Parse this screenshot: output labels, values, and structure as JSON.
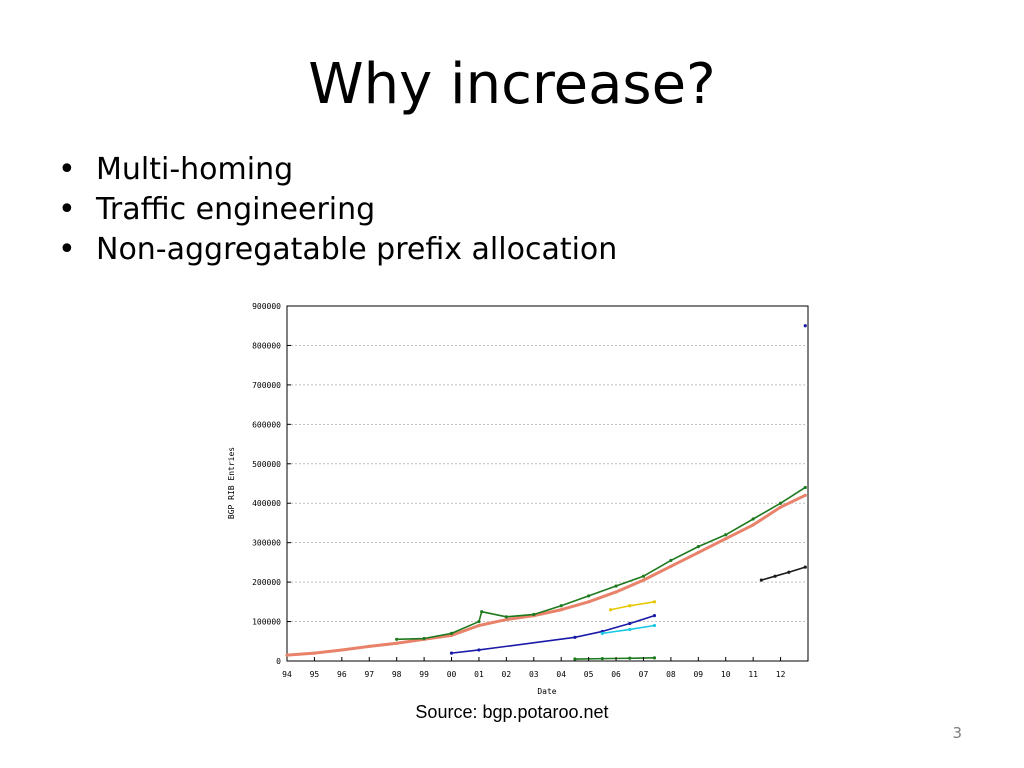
{
  "slide": {
    "title": "Why increase?",
    "bullets": [
      "Multi-homing",
      "Traffic engineering",
      "Non-aggregatable prefix allocation"
    ],
    "bullet_char": "•",
    "source": "Source: bgp.potaroo.net",
    "page_number": "3"
  },
  "chart_data": {
    "type": "scatter",
    "title": "",
    "xlabel": "Date",
    "ylabel": "BGP RIB Entries",
    "xlim": [
      1994,
      2013
    ],
    "ylim": [
      0,
      900000
    ],
    "x_ticks": [
      "94",
      "95",
      "96",
      "97",
      "98",
      "99",
      "00",
      "01",
      "02",
      "03",
      "04",
      "05",
      "06",
      "07",
      "08",
      "09",
      "10",
      "11",
      "12"
    ],
    "y_ticks": [
      "900000",
      "800000",
      "700000",
      "600000",
      "500000",
      "400000",
      "300000",
      "200000",
      "100000",
      "0"
    ],
    "grid": true,
    "series": [
      {
        "color": "#e8826a",
        "x": [
          1994.0,
          1995.0,
          1996.0,
          1997.0,
          1998.0,
          1999.0,
          2000.0,
          2001.0,
          2002.0,
          2003.0,
          2004.0,
          2005.0,
          2006.0,
          2007.0,
          2008.0,
          2009.0,
          2010.0,
          2011.0,
          2012.0,
          2012.9
        ],
        "y": [
          15000,
          20000,
          28000,
          37000,
          45000,
          55000,
          65000,
          90000,
          105000,
          115000,
          130000,
          150000,
          175000,
          205000,
          240000,
          275000,
          310000,
          345000,
          390000,
          420000
        ]
      },
      {
        "color": "#1e7a1e",
        "x": [
          1998.0,
          1999.0,
          2000.0,
          2001.0,
          2001.1,
          2002.0,
          2003.0,
          2004.0,
          2005.0,
          2006.0,
          2007.0,
          2008.0,
          2009.0,
          2010.0,
          2011.0,
          2012.0,
          2012.9
        ],
        "y": [
          55000,
          57000,
          70000,
          100000,
          125000,
          112000,
          118000,
          140000,
          165000,
          190000,
          215000,
          255000,
          290000,
          320000,
          360000,
          400000,
          440000
        ]
      },
      {
        "color": "#1a1aa8",
        "x": [
          2000.0,
          2001.0,
          2004.5,
          2005.5,
          2006.5,
          2007.4
        ],
        "y": [
          20000,
          28000,
          60000,
          75000,
          95000,
          115000
        ]
      },
      {
        "color": "#e6c800",
        "x": [
          2005.8,
          2006.5,
          2007.4
        ],
        "y": [
          130000,
          140000,
          150000
        ]
      },
      {
        "color": "#1ac8e6",
        "x": [
          2005.5,
          2006.5,
          2007.4
        ],
        "y": [
          70000,
          80000,
          90000
        ]
      },
      {
        "color": "#1e7a1e",
        "x": [
          2004.5,
          2005.5,
          2006.5,
          2007.4
        ],
        "y": [
          5000,
          6000,
          7000,
          8000
        ]
      },
      {
        "color": "#1a1a1a",
        "x": [
          2011.3,
          2011.8,
          2012.3,
          2012.9
        ],
        "y": [
          205000,
          215000,
          225000,
          238000
        ]
      },
      {
        "color": "#1a1aa8",
        "x": [
          2012.9
        ],
        "y": [
          850000
        ]
      }
    ]
  }
}
